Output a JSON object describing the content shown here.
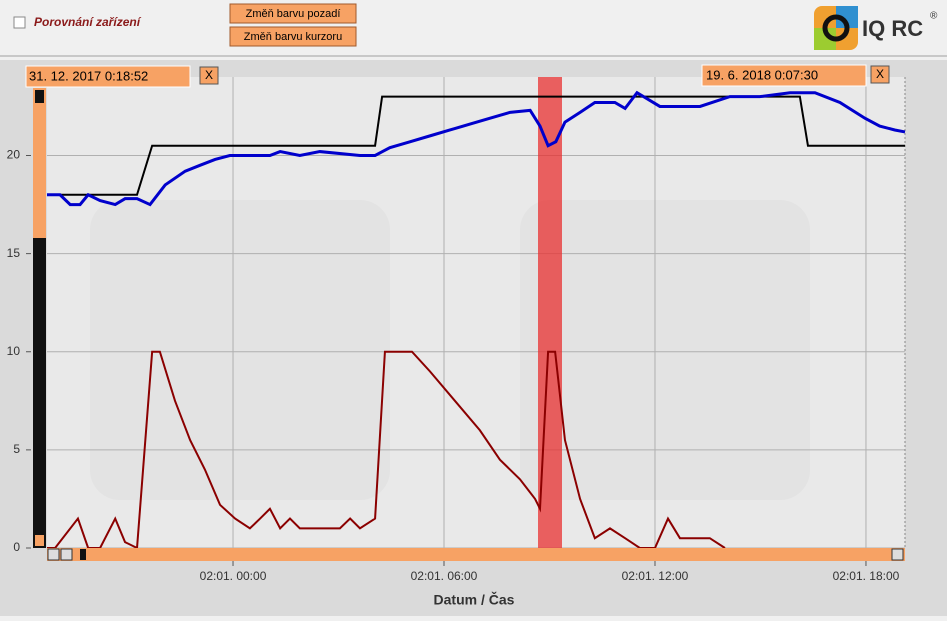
{
  "header": {
    "checkbox_label": "Porovnání zařízení",
    "buttons": [
      "Změň barvu pozadí",
      "Změň barvu kurzoru"
    ],
    "logo": "IQ RC",
    "logo_mark": "®"
  },
  "range": {
    "start": "31. 12. 2017 0:18:52",
    "start_close": "X",
    "end": "19. 6. 2018 0:07:30",
    "end_close": "X"
  },
  "chart_data": {
    "type": "line",
    "x_label": "Datum / Čas",
    "xlim": [
      -5.29,
      19.11
    ],
    "xticks": [
      {
        "value": 0,
        "label": "02:01. 00:00"
      },
      {
        "value": 6,
        "label": "02:01. 06:00"
      },
      {
        "value": 12,
        "label": "02:01. 12:00"
      },
      {
        "value": 18,
        "label": "02:01. 18:00"
      }
    ],
    "ylim": [
      0,
      24
    ],
    "yticks": [
      0,
      5,
      10,
      15,
      20
    ],
    "grid": true,
    "series": [
      {
        "color": "#000000",
        "x": [
          -5.29,
          -2.73,
          -2.3,
          4.04,
          4.24,
          16.12,
          16.35,
          19.11
        ],
        "values": [
          18,
          18,
          20.5,
          20.5,
          23,
          23,
          20.5,
          20.5
        ]
      },
      {
        "color": "#0000cc",
        "x": [
          -5.29,
          -4.92,
          -4.63,
          -4.35,
          -4.12,
          -3.78,
          -3.35,
          -3.07,
          -2.73,
          -2.36,
          -1.93,
          -1.36,
          -0.94,
          -0.51,
          -0.09,
          1.05,
          1.34,
          1.9,
          2.47,
          3.61,
          4.04,
          4.46,
          5.03,
          5.6,
          6.17,
          6.74,
          7.31,
          7.88,
          8.45,
          8.73,
          8.96,
          9.18,
          9.44,
          9.87,
          10.29,
          10.86,
          11.15,
          11.49,
          12.14,
          13.28,
          14.13,
          14.98,
          15.84,
          16.55,
          17.26,
          17.97,
          18.39,
          18.82,
          19.11
        ],
        "values": [
          18,
          18,
          17.5,
          17.5,
          18,
          17.7,
          17.5,
          17.8,
          17.8,
          17.5,
          18.5,
          19.2,
          19.5,
          19.8,
          20,
          20,
          20.2,
          20,
          20.2,
          20,
          20,
          20.4,
          20.7,
          21,
          21.3,
          21.6,
          21.9,
          22.2,
          22.3,
          21.5,
          20.5,
          20.7,
          21.7,
          22.2,
          22.7,
          22.7,
          22.4,
          23.2,
          22.5,
          22.5,
          23,
          23,
          23.2,
          23.2,
          22.7,
          21.9,
          21.5,
          21.3,
          21.2
        ]
      },
      {
        "color": "#8b0000",
        "x": [
          -5.29,
          -5.06,
          -4.41,
          -4.12,
          -3.78,
          -3.35,
          -3.07,
          -2.73,
          -2.3,
          -2.08,
          -1.65,
          -1.22,
          -0.8,
          -0.37,
          0.06,
          0.48,
          0.77,
          1.05,
          1.34,
          1.62,
          1.9,
          3.04,
          3.33,
          3.61,
          4.04,
          4.32,
          5.09,
          5.6,
          6.31,
          7.02,
          7.59,
          8.16,
          8.59,
          8.73,
          8.96,
          9.16,
          9.44,
          9.87,
          10.29,
          10.72,
          11.15,
          11.57,
          12.0,
          12.37,
          12.71,
          13.56,
          13.99
        ],
        "values": [
          0,
          0,
          1.5,
          0,
          0,
          1.5,
          0.3,
          0,
          10,
          10,
          7.5,
          5.5,
          4,
          2.2,
          1.5,
          1,
          1.5,
          2,
          1,
          1.5,
          1,
          1,
          1.5,
          1,
          1.5,
          10,
          10,
          9,
          7.5,
          6,
          4.5,
          3.5,
          2.5,
          2,
          10,
          10,
          5.5,
          2.5,
          0.5,
          1,
          0.5,
          0,
          0,
          1.5,
          0.5,
          0.5,
          0
        ]
      }
    ]
  }
}
